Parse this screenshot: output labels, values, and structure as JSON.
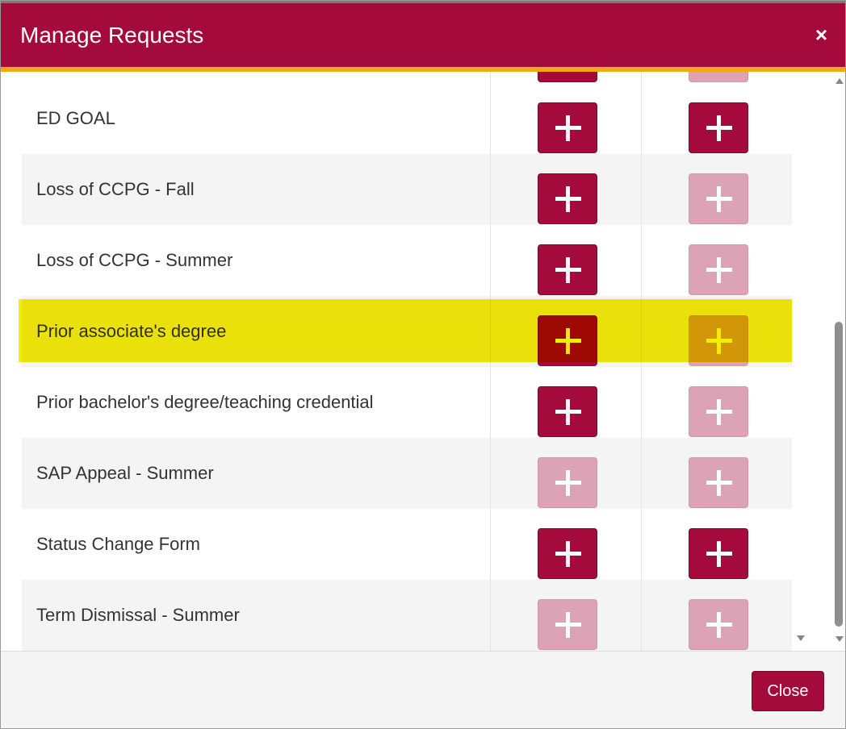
{
  "dialog": {
    "title": "Manage Requests",
    "close_x": "×"
  },
  "rows": [
    {
      "label": "",
      "col1": "active",
      "col2": "disabled"
    },
    {
      "label": "ED GOAL",
      "col1": "active",
      "col2": "active"
    },
    {
      "label": "Loss of CCPG - Fall",
      "col1": "active",
      "col2": "disabled"
    },
    {
      "label": "Loss of CCPG - Summer",
      "col1": "active",
      "col2": "disabled"
    },
    {
      "label": "Prior associate's degree",
      "col1": "active",
      "col2": "disabled"
    },
    {
      "label": "Prior bachelor's degree/teaching credential",
      "col1": "active",
      "col2": "disabled"
    },
    {
      "label": "SAP Appeal - Summer",
      "col1": "disabled",
      "col2": "disabled"
    },
    {
      "label": "Status Change Form",
      "col1": "active",
      "col2": "active"
    },
    {
      "label": "Term Dismissal - Summer",
      "col1": "disabled",
      "col2": "disabled"
    }
  ],
  "footer": {
    "close_label": "Close"
  },
  "colors": {
    "brand": "#a50a3c",
    "accent": "#f3a712",
    "disabled": "#dba3b5",
    "highlight": "#f5eb00"
  },
  "icons": {
    "add": "plus-icon",
    "close": "close-icon"
  }
}
